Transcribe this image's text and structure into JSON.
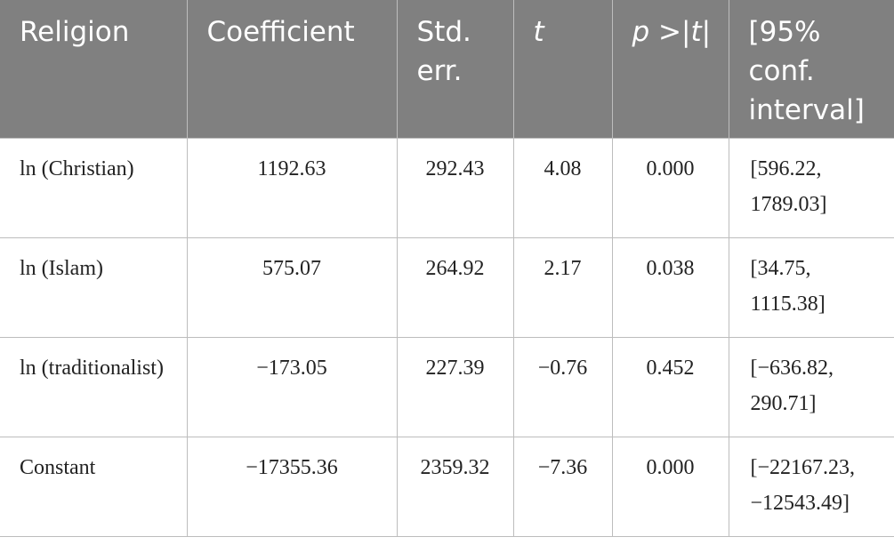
{
  "table": {
    "header": [
      "Religion",
      "Coefficient",
      "Std. err.",
      "t",
      "p >|t|",
      "[95% conf. interval]"
    ],
    "rows": [
      [
        "ln (Christian)",
        "1192.63",
        "292.43",
        "4.08",
        "0.000",
        "[596.22, 1789.03]"
      ],
      [
        "ln (Islam)",
        "575.07",
        "264.92",
        "2.17",
        "0.038",
        "[34.75, 1115.38]"
      ],
      [
        "ln (traditionalist)",
        "−173.05",
        "227.39",
        "−0.76",
        "0.452",
        "[−636.82, 290.71]"
      ],
      [
        "Constant",
        "−17355.36",
        "2359.32",
        "−7.36",
        "0.000",
        "[−22167.23, −12543.49]"
      ]
    ]
  }
}
